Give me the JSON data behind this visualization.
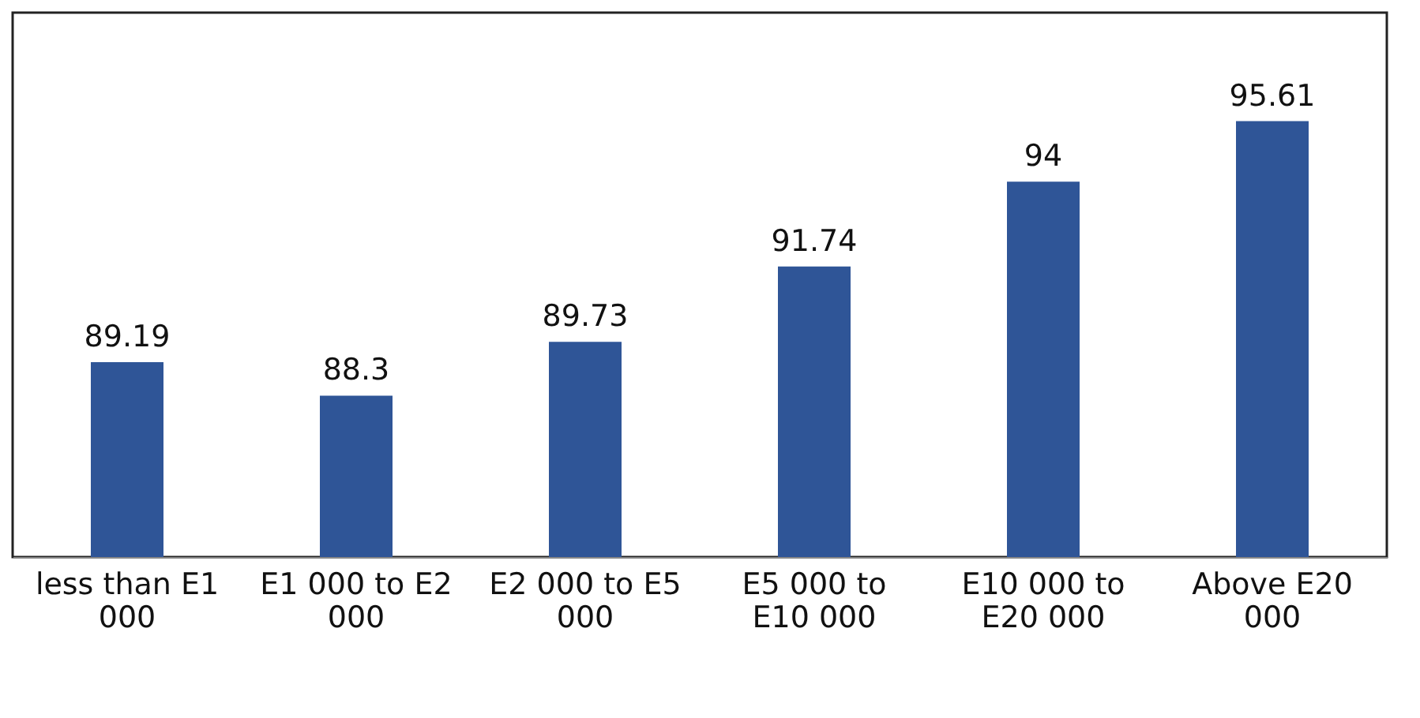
{
  "chart_data": {
    "type": "bar",
    "categories": [
      "less than E1 000",
      "E1 000 to E2 000",
      "E2 000 to E5 000",
      "E5 000 to E10 000",
      "E10 000 to E20 000",
      "Above E20 000"
    ],
    "values": [
      89.19,
      88.3,
      89.73,
      91.74,
      94,
      95.61
    ],
    "color": "#2f5597",
    "ylim": [
      84,
      98.5
    ],
    "data_labels": true
  }
}
